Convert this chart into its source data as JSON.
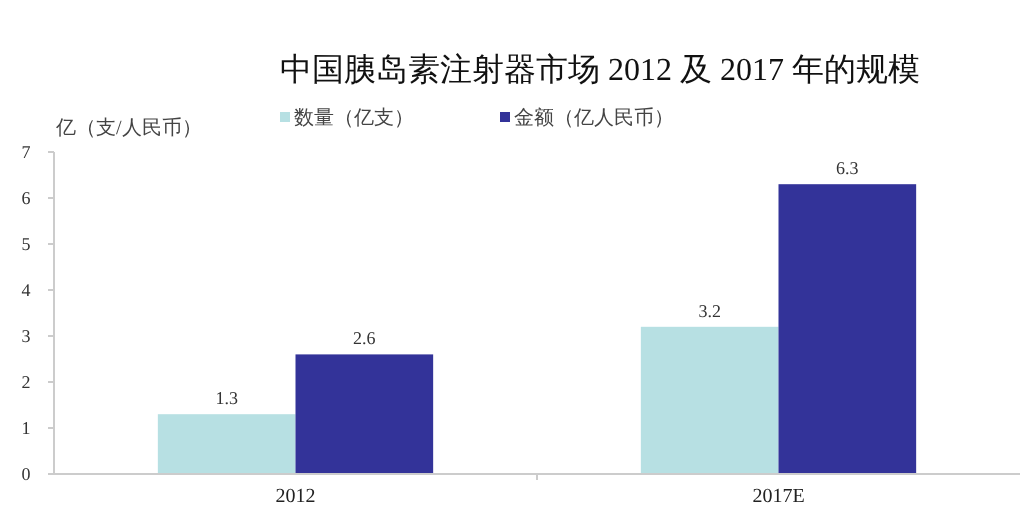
{
  "chart_data": {
    "type": "bar",
    "title": "中国胰岛素注射器市场 2012 及 2017 年的规模",
    "ylabel": "亿（支/人民币）",
    "categories": [
      "2012",
      "2017E"
    ],
    "series": [
      {
        "name": "数量（亿支）",
        "color": "#b7e0e3",
        "values": [
          1.3,
          3.2
        ]
      },
      {
        "name": "金额（亿人民币）",
        "color": "#333399",
        "values": [
          2.6,
          6.3
        ]
      }
    ],
    "ylim": [
      0,
      7
    ],
    "yticks": [
      0,
      1,
      2,
      3,
      4,
      5,
      6,
      7
    ],
    "data_labels": true,
    "legend": "top",
    "grid": false
  }
}
